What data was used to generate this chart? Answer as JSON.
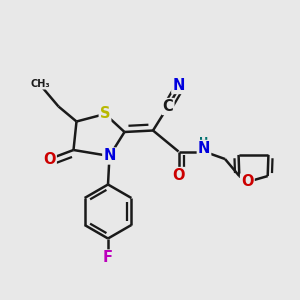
{
  "background_color": "#e8e8e8",
  "bond_color": "#1a1a1a",
  "bond_width": 1.8,
  "atom_colors": {
    "S": "#b8b800",
    "N": "#0000dd",
    "O": "#cc0000",
    "F": "#bb00bb",
    "H": "#007070",
    "C": "#1a1a1a"
  },
  "font_size": 9.5
}
